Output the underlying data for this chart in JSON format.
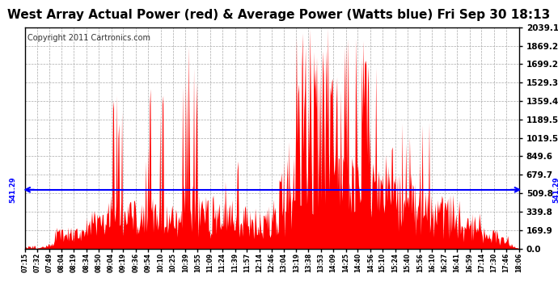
{
  "title": "West Array Actual Power (red) & Average Power (Watts blue) Fri Sep 30 18:13",
  "copyright": "Copyright 2011 Cartronics.com",
  "average_power": 541.29,
  "y_ticks": [
    0.0,
    169.9,
    339.8,
    509.8,
    679.7,
    849.6,
    1019.5,
    1189.5,
    1359.4,
    1529.3,
    1699.2,
    1869.2,
    2039.1
  ],
  "x_labels": [
    "07:15",
    "07:32",
    "07:49",
    "08:04",
    "08:19",
    "08:34",
    "08:50",
    "09:04",
    "09:19",
    "09:36",
    "09:54",
    "10:10",
    "10:25",
    "10:39",
    "10:55",
    "11:09",
    "11:24",
    "11:39",
    "11:57",
    "12:14",
    "12:46",
    "13:04",
    "13:19",
    "13:38",
    "13:53",
    "14:09",
    "14:25",
    "14:40",
    "14:56",
    "15:10",
    "15:24",
    "15:40",
    "15:56",
    "16:10",
    "16:27",
    "16:41",
    "16:59",
    "17:14",
    "17:30",
    "17:46",
    "18:06"
  ],
  "bg_color": "#ffffff",
  "red_color": "#ff0000",
  "blue_color": "#0000ff",
  "grid_color": "#aaaaaa",
  "title_fontsize": 11,
  "copyright_fontsize": 7,
  "y_max": 2039.1
}
